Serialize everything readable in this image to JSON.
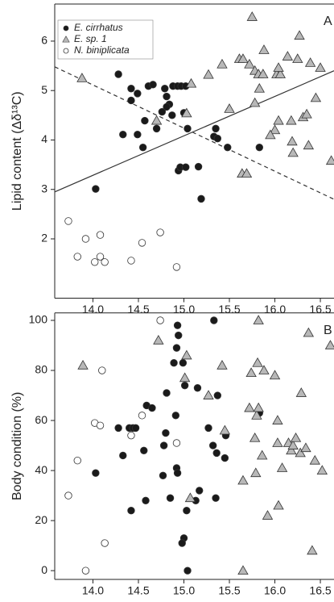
{
  "chart_data": [
    {
      "type": "scatter",
      "panel_label": "A",
      "ylabel": "Lipid content (Δδ¹³C)",
      "xlim": [
        13.58,
        16.65
      ],
      "ylim": [
        0.8,
        6.75
      ],
      "xticks": [
        {
          "value": 14.0,
          "label": "14.0"
        },
        14.5,
        {
          "value": 15.0,
          "label": "15.0"
        },
        15.5,
        {
          "value": 16.0,
          "label": "16.0"
        },
        16.5
      ],
      "yticks": [
        2,
        3,
        4,
        5,
        6
      ],
      "legend": "upper left",
      "series": [
        {
          "name": "E. cirrhatus",
          "marker": "circle",
          "color": "#1a1a1a",
          "x": [
            14.28,
            14.42,
            14.42,
            14.49,
            14.61,
            14.66,
            14.79,
            14.81,
            14.84,
            14.88,
            14.93,
            14.97,
            15.02,
            14.81,
            14.76,
            14.87,
            14.7,
            15.0,
            15.04,
            14.57,
            14.49,
            14.33,
            14.55,
            14.94,
            14.96,
            15.02,
            15.16,
            15.35,
            15.33,
            15.37,
            15.48,
            15.19,
            14.03,
            15.83
          ],
          "y": [
            5.33,
            5.04,
            4.8,
            4.94,
            5.09,
            5.12,
            5.04,
            4.88,
            4.72,
            5.09,
            5.09,
            5.09,
            5.09,
            4.67,
            4.57,
            4.5,
            4.23,
            4.55,
            4.23,
            4.39,
            4.11,
            4.11,
            3.85,
            3.38,
            3.45,
            3.45,
            3.46,
            4.23,
            4.07,
            4.03,
            3.85,
            2.81,
            3.01,
            3.85
          ]
        },
        {
          "name": "E. sp. 1",
          "marker": "triangle",
          "color": "#b8b8b8",
          "x": [
            13.88,
            14.7,
            15.08,
            15.03,
            15.27,
            15.42,
            15.61,
            15.65,
            15.75,
            15.72,
            15.78,
            15.82,
            15.87,
            15.88,
            15.83,
            15.78,
            15.5,
            15.64,
            15.69,
            16.02,
            16.06,
            16.04,
            16.14,
            16.27,
            16.25,
            16.39,
            16.5,
            16.0,
            16.04,
            15.95,
            16.18,
            16.31,
            16.35,
            16.45,
            16.19,
            16.2,
            16.37,
            16.62
          ],
          "y": [
            5.25,
            4.39,
            5.14,
            4.54,
            5.32,
            5.53,
            5.64,
            5.64,
            6.49,
            5.53,
            5.4,
            5.33,
            5.33,
            5.82,
            5.04,
            4.75,
            4.63,
            3.32,
            3.32,
            5.33,
            5.33,
            5.46,
            5.69,
            6.11,
            5.64,
            5.56,
            5.46,
            4.2,
            4.39,
            4.1,
            4.39,
            4.46,
            4.52,
            4.85,
            3.97,
            3.74,
            3.89,
            3.58
          ]
        },
        {
          "name": "N. biniplicata",
          "marker": "open-circle",
          "color": "#ffffff",
          "x": [
            13.73,
            13.83,
            13.92,
            14.02,
            14.08,
            14.08,
            14.13,
            14.42,
            14.54,
            14.74,
            14.92
          ],
          "y": [
            2.36,
            1.64,
            2.0,
            1.53,
            2.08,
            1.64,
            1.53,
            1.56,
            1.92,
            2.13,
            1.43
          ]
        }
      ],
      "fit_lines": [
        {
          "style": "solid",
          "x": [
            13.58,
            16.65
          ],
          "y": [
            2.95,
            5.4
          ]
        },
        {
          "style": "dashed",
          "x": [
            13.58,
            16.65
          ],
          "y": [
            5.48,
            2.8
          ]
        }
      ]
    },
    {
      "type": "scatter",
      "panel_label": "B",
      "ylabel": "Body condition (%)",
      "xlim": [
        13.58,
        16.65
      ],
      "ylim": [
        -3.5,
        103
      ],
      "xticks": [
        {
          "value": 14.0,
          "label": "14.0"
        },
        14.5,
        {
          "value": 15.0,
          "label": "15.0"
        },
        15.5,
        {
          "value": 16.0,
          "label": "16.0"
        },
        16.5
      ],
      "yticks": [
        0,
        20,
        40,
        60,
        80,
        100
      ],
      "series": [
        {
          "marker": "circle",
          "color": "#1a1a1a",
          "x": [
            14.03,
            14.28,
            14.33,
            14.4,
            14.44,
            14.47,
            14.42,
            14.56,
            14.58,
            14.59,
            14.65,
            14.78,
            14.8,
            14.81,
            14.77,
            14.85,
            14.89,
            14.92,
            14.93,
            14.94,
            14.92,
            14.93,
            14.91,
            14.99,
            15.01,
            15.03,
            15.04,
            15.0,
            14.98,
            15.15,
            15.17,
            15.13,
            15.27,
            15.33,
            15.32,
            15.35,
            15.36,
            15.45,
            15.46,
            15.37,
            15.83
          ],
          "y": [
            39,
            57,
            46,
            57,
            57,
            57,
            24,
            48,
            28,
            66,
            65,
            50,
            55,
            71,
            38,
            29,
            83,
            89,
            98,
            94,
            41,
            39,
            62,
            83,
            74,
            24,
            0,
            13,
            11,
            73,
            32,
            28,
            57,
            100,
            50,
            29,
            47,
            45,
            54,
            70,
            63
          ]
        },
        {
          "marker": "triangle",
          "color": "#b8b8b8",
          "x": [
            13.89,
            14.72,
            15.03,
            15.01,
            15.07,
            15.27,
            15.42,
            15.45,
            15.65,
            15.65,
            15.72,
            15.74,
            15.78,
            15.79,
            15.81,
            15.82,
            15.8,
            15.86,
            15.82,
            15.88,
            15.92,
            16.0,
            16.04,
            16.03,
            16.03,
            16.08,
            16.15,
            16.18,
            16.2,
            16.23,
            16.28,
            16.34,
            16.29,
            16.37,
            16.41,
            16.44,
            16.52,
            16.61
          ],
          "y": [
            82,
            92,
            86,
            77,
            29,
            70,
            82,
            56,
            0,
            36,
            65,
            79,
            53,
            39,
            83,
            100,
            62,
            46,
            65,
            80,
            22,
            78,
            26,
            51,
            60,
            41,
            51,
            48,
            50,
            53,
            47,
            49,
            71,
            95,
            8,
            44,
            40,
            90
          ]
        },
        {
          "marker": "open-circle",
          "color": "#ffffff",
          "x": [
            13.73,
            13.83,
            13.92,
            14.02,
            14.08,
            14.1,
            14.13,
            14.42,
            14.54,
            14.74,
            14.92
          ],
          "y": [
            30,
            44,
            0,
            59,
            58,
            80,
            11,
            54,
            62,
            100,
            51
          ]
        }
      ]
    }
  ]
}
